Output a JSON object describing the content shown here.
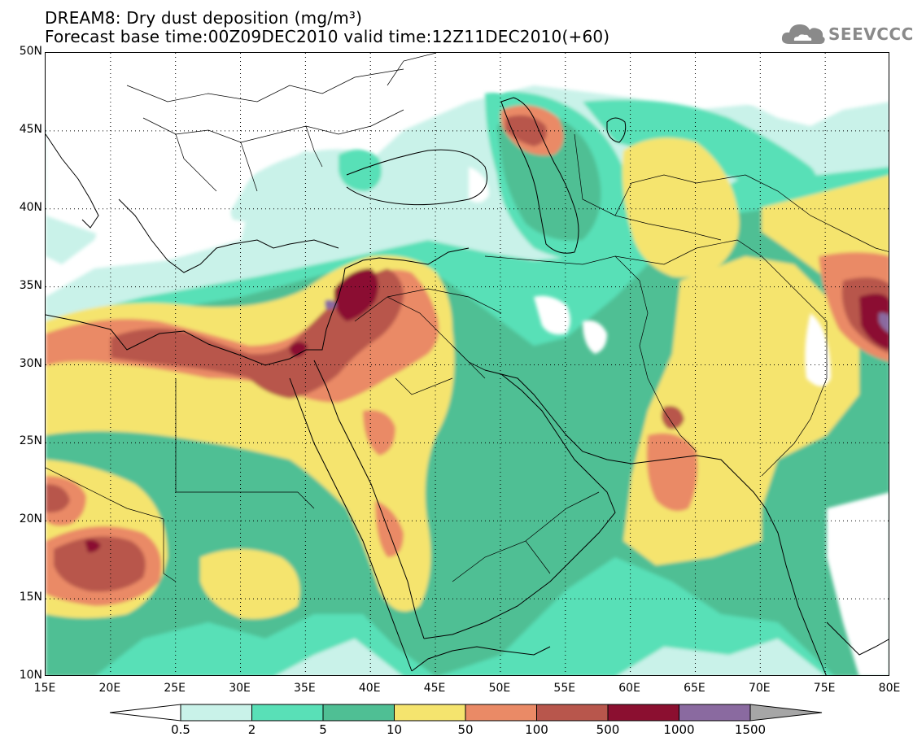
{
  "title": {
    "line1": "DREAM8: Dry dust deposition (mg/m³)",
    "line2": "Forecast base time:00Z09DEC2010 valid time:12Z11DEC2010(+60)"
  },
  "logo": {
    "text": "SEEVCCC",
    "icon": "cloud-icon",
    "color": "#8a8a8a"
  },
  "map": {
    "lat_labels": [
      "50N",
      "45N",
      "40N",
      "35N",
      "30N",
      "25N",
      "20N",
      "15N",
      "10N"
    ],
    "lon_labels": [
      "15E",
      "20E",
      "25E",
      "30E",
      "35E",
      "40E",
      "45E",
      "50E",
      "55E",
      "60E",
      "65E",
      "70E",
      "75E",
      "80E"
    ],
    "lat_range": [
      10,
      50
    ],
    "lon_range": [
      15,
      80
    ],
    "grid": "dotted",
    "level_colors": [
      "#ffffff",
      "#c9f2e9",
      "#59e0b7",
      "#4fbf94",
      "#f5e46e",
      "#ea8a66",
      "#b8564c",
      "#8b0f30",
      "#8a6aa0"
    ]
  },
  "colorbar": {
    "labels": [
      "0.5",
      "2",
      "5",
      "10",
      "50",
      "100",
      "500",
      "1000",
      "1500"
    ],
    "colors": [
      "#ffffff",
      "#c9f2e9",
      "#59e0b7",
      "#4fbf94",
      "#f5e46e",
      "#ea8a66",
      "#b8564c",
      "#8b0f30",
      "#8a6aa0",
      "#a6a6a6"
    ]
  }
}
